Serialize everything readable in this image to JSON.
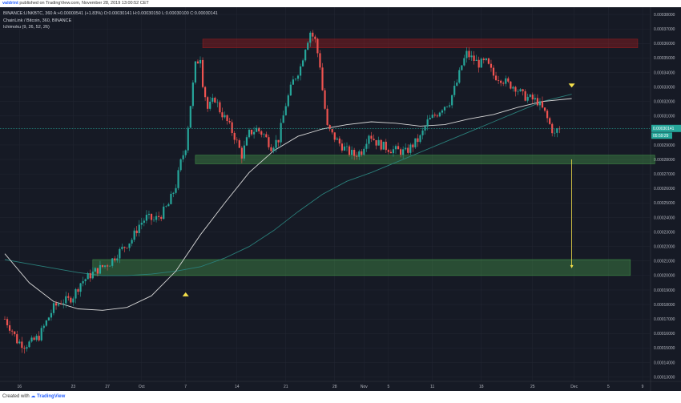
{
  "header": {
    "author": "valdrint",
    "published": "published on TradingView.com, November 28, 2019 13:00:52 CET"
  },
  "legend": {
    "symbol_line": "BINANCE:LINKBTC, 360 A:+0.00000541 (+1.83%) O:0.00030141 H:0.00030150 L:0.00030100 C:0.00030141",
    "title": "ChainLink / Bitcoin, 360, BINANCE",
    "indicator": "Ichimoku (9, 26, 52, 26)"
  },
  "footer": {
    "created_with": "Created with",
    "brand": "TradingView"
  },
  "colors": {
    "background": "#161a25",
    "grid": "#232733",
    "up": "#26a69a",
    "down": "#ef5350",
    "ma_white": "#d8d8d8",
    "ma_teal": "#2a7f7a",
    "support_zone": "#4caf50",
    "resistance_zone": "#b71c1c",
    "arrow": "#f5e04a",
    "price_line": "#26a69a"
  },
  "chart_data": {
    "type": "candlestick",
    "title": "ChainLink / Bitcoin, 360, BINANCE",
    "xlabel": "",
    "ylabel": "",
    "x_ticks": [
      "16",
      "23",
      "27",
      "Oct",
      "7",
      "14",
      "21",
      "28",
      "Nov",
      "5",
      "11",
      "18",
      "25",
      "Dec",
      "5",
      "9"
    ],
    "x_tick_index": [
      6,
      28,
      42,
      56,
      74,
      95,
      115,
      135,
      147,
      157,
      175,
      195,
      216,
      233,
      247,
      261
    ],
    "y_ticks": [
      "0.00013000",
      "0.00014000",
      "0.00015000",
      "0.00016000",
      "0.00017000",
      "0.00018000",
      "0.00019000",
      "0.00020000",
      "0.00021000",
      "0.00022000",
      "0.00023000",
      "0.00024000",
      "0.00025000",
      "0.00026000",
      "0.00027000",
      "0.00028000",
      "0.00029000",
      "0.00031000",
      "0.00032000",
      "0.00033000",
      "0.00034000",
      "0.00035000",
      "0.00036000",
      "0.00037000",
      "0.00038000"
    ],
    "ylim": [
      0.000127,
      0.000385
    ],
    "current_price": "0.00030141",
    "countdown": "05:59:29",
    "close_path": [
      [
        0,
        0.00017
      ],
      [
        3,
        0.000162
      ],
      [
        5,
        0.000155
      ],
      [
        8,
        0.000152
      ],
      [
        11,
        0.000154
      ],
      [
        14,
        0.000158
      ],
      [
        17,
        0.000168
      ],
      [
        20,
        0.000178
      ],
      [
        23,
        0.000182
      ],
      [
        26,
        0.000183
      ],
      [
        28,
        0.000186
      ],
      [
        31,
        0.000195
      ],
      [
        34,
        0.000199
      ],
      [
        37,
        0.000203
      ],
      [
        40,
        0.000206
      ],
      [
        43,
        0.000209
      ],
      [
        46,
        0.000215
      ],
      [
        49,
        0.00022
      ],
      [
        52,
        0.000225
      ],
      [
        55,
        0.000235
      ],
      [
        58,
        0.00024
      ],
      [
        61,
        0.000238
      ],
      [
        64,
        0.000242
      ],
      [
        67,
        0.000249
      ],
      [
        70,
        0.000262
      ],
      [
        72,
        0.000278
      ],
      [
        74,
        0.000289
      ],
      [
        76,
        0.000318
      ],
      [
        78,
        0.000345
      ],
      [
        80,
        0.000351
      ],
      [
        81,
        0.000333
      ],
      [
        83,
        0.000315
      ],
      [
        86,
        0.000322
      ],
      [
        88,
        0.000314
      ],
      [
        91,
        0.000306
      ],
      [
        94,
        0.000296
      ],
      [
        97,
        0.000283
      ],
      [
        100,
        0.000298
      ],
      [
        103,
        0.000301
      ],
      [
        106,
        0.000297
      ],
      [
        109,
        0.000289
      ],
      [
        112,
        0.000294
      ],
      [
        115,
        0.000318
      ],
      [
        118,
        0.000334
      ],
      [
        121,
        0.000344
      ],
      [
        123,
        0.000358
      ],
      [
        125,
        0.000368
      ],
      [
        127,
        0.000362
      ],
      [
        129,
        0.000345
      ],
      [
        130,
        0.000328
      ],
      [
        132,
        0.000302
      ],
      [
        134,
        0.000297
      ],
      [
        137,
        0.000291
      ],
      [
        140,
        0.000286
      ],
      [
        143,
        0.000283
      ],
      [
        146,
        0.000286
      ],
      [
        149,
        0.000298
      ],
      [
        152,
        0.000292
      ],
      [
        155,
        0.000289
      ],
      [
        158,
        0.000287
      ],
      [
        161,
        0.000286
      ],
      [
        164,
        0.000285
      ],
      [
        167,
        0.00029
      ],
      [
        170,
        0.000295
      ],
      [
        173,
        0.000306
      ],
      [
        175,
        0.000309
      ],
      [
        177,
        0.000312
      ],
      [
        179,
        0.000316
      ],
      [
        182,
        0.00032
      ],
      [
        185,
        0.000333
      ],
      [
        187,
        0.000345
      ],
      [
        189,
        0.000353
      ],
      [
        191,
        0.00035
      ],
      [
        194,
        0.000346
      ],
      [
        197,
        0.000347
      ],
      [
        200,
        0.000338
      ],
      [
        203,
        0.000336
      ],
      [
        206,
        0.000332
      ],
      [
        209,
        0.00033
      ],
      [
        212,
        0.000324
      ],
      [
        215,
        0.000322
      ],
      [
        218,
        0.00032
      ],
      [
        221,
        0.000312
      ],
      [
        223,
        0.000304
      ],
      [
        225,
        0.000297
      ],
      [
        226,
        0.0003
      ],
      [
        227,
        0.000301
      ]
    ],
    "ma_white": [
      [
        0,
        0.000215
      ],
      [
        10,
        0.000195
      ],
      [
        20,
        0.000182
      ],
      [
        30,
        0.000177
      ],
      [
        40,
        0.000176
      ],
      [
        50,
        0.000178
      ],
      [
        60,
        0.000186
      ],
      [
        70,
        0.000203
      ],
      [
        80,
        0.000228
      ],
      [
        90,
        0.00025
      ],
      [
        100,
        0.000271
      ],
      [
        110,
        0.000286
      ],
      [
        120,
        0.000296
      ],
      [
        130,
        0.000301
      ],
      [
        140,
        0.000304
      ],
      [
        150,
        0.000306
      ],
      [
        160,
        0.000305
      ],
      [
        170,
        0.000303
      ],
      [
        180,
        0.000304
      ],
      [
        190,
        0.000308
      ],
      [
        200,
        0.000311
      ],
      [
        210,
        0.000316
      ],
      [
        220,
        0.00032
      ],
      [
        232,
        0.000322
      ]
    ],
    "ma_teal": [
      [
        0,
        0.000211
      ],
      [
        10,
        0.000208
      ],
      [
        20,
        0.000205
      ],
      [
        30,
        0.000202
      ],
      [
        40,
        0.0002
      ],
      [
        50,
        0.0002
      ],
      [
        60,
        0.000201
      ],
      [
        70,
        0.000203
      ],
      [
        80,
        0.000206
      ],
      [
        90,
        0.000212
      ],
      [
        100,
        0.00022
      ],
      [
        110,
        0.000231
      ],
      [
        120,
        0.000244
      ],
      [
        130,
        0.000256
      ],
      [
        140,
        0.000265
      ],
      [
        150,
        0.000271
      ],
      [
        160,
        0.000278
      ],
      [
        170,
        0.000285
      ],
      [
        180,
        0.000292
      ],
      [
        190,
        0.000299
      ],
      [
        200,
        0.000306
      ],
      [
        210,
        0.000313
      ],
      [
        220,
        0.00032
      ],
      [
        232,
        0.000325
      ]
    ],
    "zones": [
      {
        "name": "resistance",
        "from_index": 81,
        "to_index": 259,
        "y_low": 0.000357,
        "y_high": 0.000363
      },
      {
        "name": "support",
        "from_index": 78,
        "to_index": 266,
        "y_low": 0.000277,
        "y_high": 0.000283
      },
      {
        "name": "target",
        "from_index": 36,
        "to_index": 256,
        "y_low": 0.0002,
        "y_high": 0.000211
      }
    ],
    "arrows": [
      {
        "type": "down-triangle",
        "index": 232,
        "y": 0.000331
      },
      {
        "type": "up-triangle",
        "index": 74,
        "y": 0.000187
      }
    ],
    "projection": {
      "index": 232,
      "y_from": 0.00028,
      "y_to": 0.000205
    }
  }
}
